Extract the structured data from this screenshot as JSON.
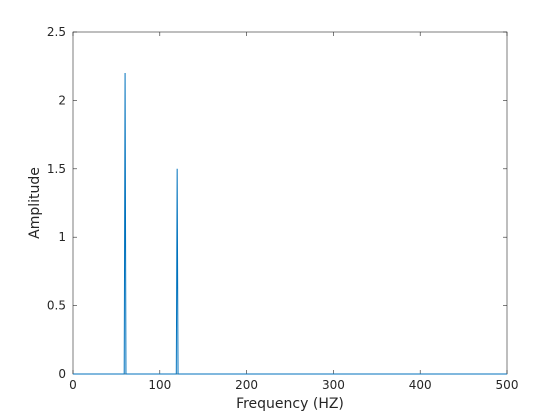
{
  "chart_data": {
    "type": "line",
    "x_label": "Frequency (HZ)",
    "y_label": "Amplitude",
    "x": [
      0,
      59,
      60,
      61,
      119,
      120,
      121,
      500
    ],
    "series": [
      {
        "color": "#0072bd",
        "values": [
          0,
          0,
          2.2,
          0,
          0,
          1.5,
          0,
          0
        ]
      }
    ],
    "xlim": [
      0,
      500
    ],
    "xticks": [
      0,
      100,
      200,
      300,
      400,
      500
    ],
    "ylim": [
      0,
      2.5
    ],
    "yticks": [
      0,
      0.5,
      1,
      1.5,
      2,
      2.5
    ],
    "grid": false
  }
}
